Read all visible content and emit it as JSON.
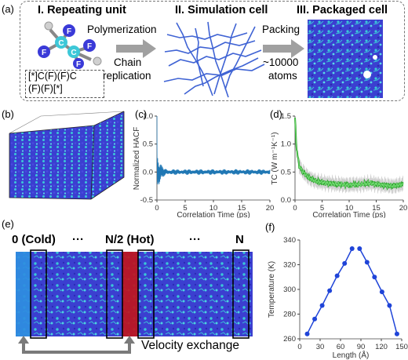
{
  "panel_labels": {
    "a": "(a)",
    "b": "(b)",
    "c": "(c)",
    "d": "(d)",
    "e": "(e)",
    "f": "(f)"
  },
  "panel_a": {
    "step1": "I. Repeating unit",
    "step2": "II. Simulation cell",
    "step3": "III. Packaged cell",
    "arrow1_top": "Polymerization",
    "arrow1_bottom_line1": "Chain",
    "arrow1_bottom_line2": "replication",
    "arrow2_top": "Packing",
    "arrow2_bottom_line1": "~10000",
    "arrow2_bottom_line2": "atoms",
    "formula_line1": "[*]C(F)(F)C",
    "formula_line2": "(F)(F)[*]",
    "atom_C": "C",
    "atom_F": "F",
    "colors": {
      "carbon": "#3dc8d8",
      "fluorine": "#3a3ad8",
      "hydrogen": "#c8c8c8",
      "chain": "#3f63d4",
      "bulk": "#3b3fd0",
      "bulk_highlight": "#3ac8d8"
    }
  },
  "panel_e": {
    "label_left": "0 (Cold)",
    "dots1": "···",
    "label_mid": "N/2 (Hot)",
    "dots2": "···",
    "label_right": "N",
    "velocity": "Velocity exchange",
    "colors": {
      "cold": "#2f8ee0",
      "hot": "#c0151c"
    }
  },
  "chart_data": [
    {
      "type": "line",
      "id": "c",
      "xlabel": "Correlation Time (ps)",
      "ylabel": "Normalized HACF",
      "xlim": [
        0,
        20
      ],
      "ylim": [
        -0.5,
        1.0
      ],
      "xticks": [
        0,
        5,
        10,
        15,
        20
      ],
      "yticks": [
        -0.5,
        0.0,
        0.5,
        1.0
      ],
      "xtick_labels": [
        "0",
        "5",
        "10",
        "15",
        "20"
      ],
      "ytick_labels": [
        "-0.5",
        "0.0",
        "0.5",
        "1.0"
      ],
      "series": [
        {
          "x": [
            0,
            0.05,
            0.1,
            0.2,
            0.5,
            1,
            2,
            5,
            10,
            20
          ],
          "y": [
            1.0,
            0.3,
            -0.15,
            0.15,
            -0.1,
            0.08,
            0.05,
            0.02,
            0.01,
            0.0
          ]
        }
      ],
      "color": "#1f77b4"
    },
    {
      "type": "line",
      "id": "d",
      "xlabel": "Correlation Time (ps)",
      "ylabel": "TC (W m⁻¹K⁻¹)",
      "xlim": [
        0,
        20
      ],
      "ylim": [
        0,
        1.5
      ],
      "xticks": [
        0,
        5,
        10,
        15,
        20
      ],
      "yticks": [
        0.0,
        0.5,
        1.0,
        1.5
      ],
      "xtick_labels": [
        "0",
        "5",
        "10",
        "15",
        "20"
      ],
      "ytick_labels": [
        "0.0",
        "0.5",
        "1.0",
        "1.5"
      ],
      "series": [
        {
          "x": [
            0,
            0.3,
            0.8,
            1.5,
            2.5,
            4,
            6,
            8,
            10,
            12,
            14,
            16,
            18,
            20
          ],
          "y": [
            1.45,
            0.9,
            0.6,
            0.5,
            0.4,
            0.33,
            0.3,
            0.28,
            0.27,
            0.28,
            0.3,
            0.27,
            0.25,
            0.28
          ]
        }
      ],
      "colors": {
        "line": "#3ab53a",
        "band": "#b0b0b0"
      }
    },
    {
      "type": "line",
      "id": "f",
      "xlabel": "Length (Å)",
      "ylabel": "Temperature (K)",
      "xlim": [
        0,
        150
      ],
      "ylim": [
        260,
        340
      ],
      "xticks": [
        0,
        30,
        60,
        90,
        120,
        150
      ],
      "yticks": [
        260,
        280,
        300,
        320,
        340
      ],
      "xtick_labels": [
        "0",
        "30",
        "60",
        "90",
        "120",
        "150"
      ],
      "ytick_labels": [
        "260",
        "280",
        "300",
        "320",
        "340"
      ],
      "series": [
        {
          "x": [
            11,
            22,
            33,
            44,
            55,
            66,
            77,
            88,
            99,
            110,
            121,
            132,
            143
          ],
          "y": [
            264,
            276,
            287,
            299,
            311,
            321,
            333,
            333,
            322,
            310,
            298,
            287,
            264
          ]
        }
      ],
      "color": "#1f44d8"
    }
  ]
}
